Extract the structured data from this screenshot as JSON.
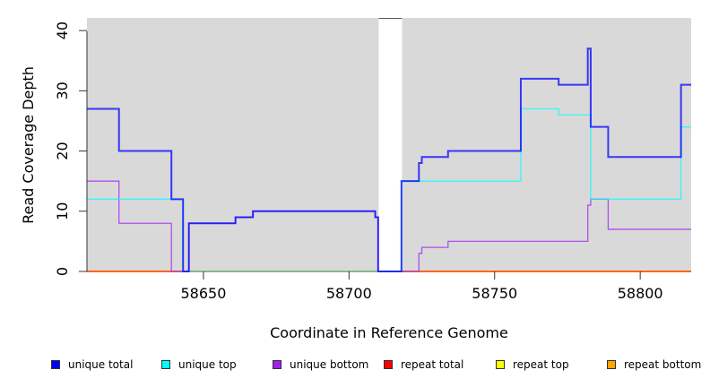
{
  "chart_data": {
    "type": "line",
    "step": true,
    "xlabel": "Coordinate in Reference Genome",
    "ylabel": "Read Coverage Depth",
    "xlim": [
      58610,
      58817.5
    ],
    "ylim": [
      0,
      42.1
    ],
    "xticks": [
      58650,
      58700,
      58750,
      58800
    ],
    "xtick_labels": [
      "58650",
      "58700",
      "58750",
      "58800"
    ],
    "yticks": [
      0,
      10,
      20,
      30,
      40
    ],
    "ytick_labels": [
      "0",
      "10",
      "20",
      "30",
      "40"
    ],
    "background_color": "#d9d9d9",
    "gaps": [
      [
        58710.2,
        58718.2
      ]
    ],
    "legend_position": "bottom",
    "series": [
      {
        "name": "unique total",
        "color": "#0000ff",
        "steps": [
          [
            58610,
            27
          ],
          [
            58621,
            20
          ],
          [
            58639,
            12
          ],
          [
            58643,
            0
          ],
          [
            58645,
            8
          ],
          [
            58661,
            9
          ],
          [
            58667,
            10
          ],
          [
            58709,
            9
          ],
          [
            58710,
            0
          ],
          [
            58718,
            15
          ],
          [
            58724,
            18
          ],
          [
            58725,
            19
          ],
          [
            58734,
            20
          ],
          [
            58759,
            32
          ],
          [
            58772,
            31
          ],
          [
            58782,
            37
          ],
          [
            58783,
            24
          ],
          [
            58789,
            19
          ],
          [
            58814,
            31
          ],
          [
            58817.5,
            31
          ]
        ]
      },
      {
        "name": "unique top",
        "color": "#00ffff",
        "steps": [
          [
            58610,
            12
          ],
          [
            58643,
            0
          ],
          [
            58718,
            15
          ],
          [
            58759,
            27
          ],
          [
            58772,
            26
          ],
          [
            58783,
            12
          ],
          [
            58814,
            24
          ],
          [
            58817.5,
            24
          ]
        ]
      },
      {
        "name": "unique bottom",
        "color": "#a020f0",
        "steps": [
          [
            58610,
            15
          ],
          [
            58621,
            8
          ],
          [
            58639,
            0
          ],
          [
            58645,
            8
          ],
          [
            58661,
            9
          ],
          [
            58667,
            10
          ],
          [
            58709,
            9
          ],
          [
            58710,
            0
          ],
          [
            58724,
            3
          ],
          [
            58725,
            4
          ],
          [
            58734,
            5
          ],
          [
            58782,
            11
          ],
          [
            58783,
            12
          ],
          [
            58789,
            7
          ],
          [
            58817.5,
            7
          ]
        ]
      },
      {
        "name": "repeat total",
        "color": "#ff0000",
        "steps": [
          [
            58610,
            0
          ],
          [
            58817.5,
            0
          ]
        ]
      },
      {
        "name": "repeat top",
        "color": "#ffff00",
        "steps": [
          [
            58610,
            0
          ],
          [
            58817.5,
            0
          ]
        ]
      },
      {
        "name": "repeat bottom",
        "color": "#ffa500",
        "steps": [
          [
            58610,
            0
          ],
          [
            58817.5,
            0
          ]
        ]
      }
    ]
  }
}
